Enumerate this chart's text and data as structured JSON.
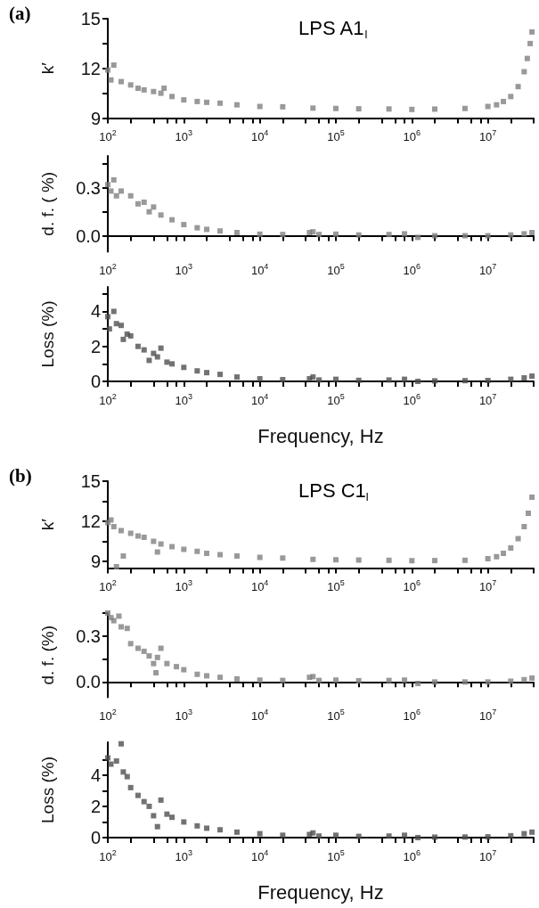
{
  "chart_data": [
    {
      "type": "scatter",
      "title": "LPS A1$_{l}$",
      "annotations": [
        "(a)"
      ],
      "ylabel": "k′",
      "marker": "square",
      "color": "#7f7f7f",
      "x": [
        100,
        110,
        120,
        150,
        200,
        250,
        300,
        400,
        500,
        550,
        700,
        1000,
        1500,
        2000,
        3000,
        5000,
        10000,
        20000,
        50000,
        100000,
        200000,
        500000,
        1000000,
        2000000,
        5000000,
        10000000,
        13000000,
        16000000,
        20000000,
        25000000,
        30000000,
        33000000,
        36000000,
        38000000
      ],
      "values": [
        11.9,
        11.3,
        12.2,
        11.2,
        11,
        10.8,
        10.7,
        10.6,
        10.5,
        10.8,
        10.3,
        10.1,
        10.0,
        9.95,
        9.9,
        9.8,
        9.7,
        9.68,
        9.6,
        9.58,
        9.56,
        9.55,
        9.52,
        9.54,
        9.58,
        9.7,
        9.8,
        10,
        10.3,
        10.9,
        11.8,
        12.6,
        13.5,
        14.2
      ],
      "xlim": [
        100,
        40000000
      ],
      "xticks": [
        {
          "value": 100,
          "label": "10$^{2}$"
        },
        {
          "value": 200,
          "label": null
        },
        {
          "value": 400,
          "label": null
        },
        {
          "value": 600,
          "label": null
        },
        {
          "value": 800,
          "label": null
        },
        {
          "value": 1000,
          "label": "10$^{3}$"
        },
        {
          "value": 2000,
          "label": null
        },
        {
          "value": 4000,
          "label": null
        },
        {
          "value": 6000,
          "label": null
        },
        {
          "value": 8000,
          "label": null
        },
        {
          "value": 10000,
          "label": "10$^{4}$"
        },
        {
          "value": 20000,
          "label": null
        },
        {
          "value": 40000,
          "label": null
        },
        {
          "value": 60000,
          "label": null
        },
        {
          "value": 80000,
          "label": null
        },
        {
          "value": 100000,
          "label": "10$^{5}$"
        },
        {
          "value": 200000,
          "label": null
        },
        {
          "value": 400000,
          "label": null
        },
        {
          "value": 600000,
          "label": null
        },
        {
          "value": 800000,
          "label": null
        },
        {
          "value": 1000000,
          "label": "10$^{6}$"
        },
        {
          "value": 2000000,
          "label": null
        },
        {
          "value": 4000000,
          "label": null
        },
        {
          "value": 6000000,
          "label": null
        },
        {
          "value": 8000000,
          "label": null
        },
        {
          "value": 10000000,
          "label": "10$^{7}$"
        },
        {
          "value": 20000000,
          "label": null
        },
        {
          "value": 40000000,
          "label": null
        }
      ],
      "ylim": [
        9,
        15
      ],
      "yticks": [
        9,
        {
          "value": 10.5,
          "label": null
        },
        12,
        {
          "value": 13.5,
          "label": null
        },
        15
      ],
      "log": "x",
      "grid": false
    },
    {
      "type": "scatter",
      "ylabel": "d. f. ( %)",
      "marker": "square",
      "color": "#7f7f7f",
      "x": [
        100,
        110,
        120,
        130,
        150,
        200,
        250,
        300,
        350,
        400,
        500,
        700,
        1000,
        1500,
        2000,
        3000,
        5000,
        10000,
        20000,
        45000,
        50000,
        60000,
        100000,
        200000,
        500000,
        800000,
        1200000,
        2000000,
        5000000,
        10000000,
        20000000,
        30000000,
        38000000
      ],
      "values": [
        0.32,
        0.28,
        0.35,
        0.25,
        0.28,
        0.25,
        0.2,
        0.21,
        0.15,
        0.18,
        0.13,
        0.1,
        0.07,
        0.05,
        0.04,
        0.03,
        0.02,
        0.01,
        0.008,
        0.02,
        0.025,
        0.008,
        0.01,
        0.005,
        0.008,
        0.012,
        -0.01,
        0.0,
        0.0,
        0.0,
        0.005,
        0.012,
        0.02
      ],
      "xlim": [
        100,
        40000000
      ],
      "xticks": [
        {
          "value": 100,
          "label": "10$^{2}$"
        },
        {
          "value": 200,
          "label": null
        },
        {
          "value": 400,
          "label": null
        },
        {
          "value": 600,
          "label": null
        },
        {
          "value": 800,
          "label": null
        },
        {
          "value": 1000,
          "label": "10$^{3}$"
        },
        {
          "value": 2000,
          "label": null
        },
        {
          "value": 4000,
          "label": null
        },
        {
          "value": 6000,
          "label": null
        },
        {
          "value": 8000,
          "label": null
        },
        {
          "value": 10000,
          "label": "10$^{4}$"
        },
        {
          "value": 20000,
          "label": null
        },
        {
          "value": 40000,
          "label": null
        },
        {
          "value": 60000,
          "label": null
        },
        {
          "value": 80000,
          "label": null
        },
        {
          "value": 100000,
          "label": "10$^{5}$"
        },
        {
          "value": 200000,
          "label": null
        },
        {
          "value": 400000,
          "label": null
        },
        {
          "value": 600000,
          "label": null
        },
        {
          "value": 800000,
          "label": null
        },
        {
          "value": 1000000,
          "label": "10$^{6}$"
        },
        {
          "value": 2000000,
          "label": null
        },
        {
          "value": 4000000,
          "label": null
        },
        {
          "value": 6000000,
          "label": null
        },
        {
          "value": 8000000,
          "label": null
        },
        {
          "value": 10000000,
          "label": "10$^{7}$"
        },
        {
          "value": 20000000,
          "label": null
        },
        {
          "value": 40000000,
          "label": null
        }
      ],
      "ylim": [
        -0.1,
        0.5
      ],
      "yticks": [
        {
          "value": 0,
          "label": "0.0"
        },
        {
          "value": 0.15,
          "label": null
        },
        0.3,
        {
          "value": 0.45,
          "label": null
        }
      ],
      "log": "x",
      "grid": false
    },
    {
      "type": "scatter",
      "ylabel": "Loss (%)",
      "xlabel": "Frequency, Hz",
      "marker": "square",
      "color": "#4f4f4f",
      "x": [
        100,
        105,
        120,
        130,
        150,
        160,
        180,
        200,
        250,
        300,
        350,
        400,
        450,
        500,
        600,
        700,
        1000,
        1500,
        2000,
        3000,
        5000,
        10000,
        20000,
        45000,
        50000,
        60000,
        100000,
        200000,
        500000,
        800000,
        1200000,
        2000000,
        5000000,
        10000000,
        20000000,
        30000000,
        38000000
      ],
      "values": [
        3.7,
        3.0,
        4.0,
        3.3,
        3.2,
        2.4,
        2.7,
        2.6,
        2.0,
        1.8,
        1.2,
        1.6,
        1.4,
        1.9,
        1.1,
        1.0,
        0.8,
        0.6,
        0.5,
        0.4,
        0.25,
        0.15,
        0.1,
        0.15,
        0.25,
        0.08,
        0.12,
        0.06,
        0.08,
        0.12,
        0.0,
        0.03,
        0.04,
        0.05,
        0.12,
        0.2,
        0.3
      ],
      "xlim": [
        100,
        40000000
      ],
      "xticks": [
        {
          "value": 100,
          "label": "10$^{2}$"
        },
        {
          "value": 200,
          "label": null
        },
        {
          "value": 400,
          "label": null
        },
        {
          "value": 600,
          "label": null
        },
        {
          "value": 800,
          "label": null
        },
        {
          "value": 1000,
          "label": "10$^{3}$"
        },
        {
          "value": 2000,
          "label": null
        },
        {
          "value": 4000,
          "label": null
        },
        {
          "value": 6000,
          "label": null
        },
        {
          "value": 8000,
          "label": null
        },
        {
          "value": 10000,
          "label": "10$^{4}$"
        },
        {
          "value": 20000,
          "label": null
        },
        {
          "value": 40000,
          "label": null
        },
        {
          "value": 60000,
          "label": null
        },
        {
          "value": 80000,
          "label": null
        },
        {
          "value": 100000,
          "label": "10$^{5}$"
        },
        {
          "value": 200000,
          "label": null
        },
        {
          "value": 400000,
          "label": null
        },
        {
          "value": 600000,
          "label": null
        },
        {
          "value": 800000,
          "label": null
        },
        {
          "value": 1000000,
          "label": "10$^{6}$"
        },
        {
          "value": 2000000,
          "label": null
        },
        {
          "value": 4000000,
          "label": null
        },
        {
          "value": 6000000,
          "label": null
        },
        {
          "value": 8000000,
          "label": null
        },
        {
          "value": 10000000,
          "label": "10$^{7}$"
        },
        {
          "value": 20000000,
          "label": null
        },
        {
          "value": 40000000,
          "label": null
        }
      ],
      "ylim": [
        0,
        5.4
      ],
      "yticks": [
        0,
        {
          "value": 1,
          "label": null
        },
        2,
        {
          "value": 3,
          "label": null
        },
        4,
        {
          "value": 5,
          "label": null
        }
      ],
      "log": "x",
      "grid": false
    },
    {
      "type": "scatter",
      "title": "LPS C1$_{l}$",
      "annotations": [
        "(b)"
      ],
      "ylabel": "k′",
      "marker": "square",
      "color": "#7f7f7f",
      "x": [
        100,
        110,
        120,
        130,
        150,
        160,
        200,
        250,
        300,
        400,
        450,
        500,
        700,
        1000,
        1500,
        2000,
        3000,
        5000,
        10000,
        20000,
        50000,
        100000,
        200000,
        500000,
        1000000,
        2000000,
        5000000,
        10000000,
        13000000,
        16000000,
        20000000,
        25000000,
        30000000,
        34000000,
        38000000
      ],
      "values": [
        11.9,
        12.1,
        11.6,
        8.6,
        11.3,
        9.4,
        11.1,
        10.9,
        10.8,
        10.5,
        9.7,
        10.3,
        10.1,
        9.9,
        9.75,
        9.6,
        9.5,
        9.4,
        9.3,
        9.25,
        9.15,
        9.12,
        9.1,
        9.08,
        9.05,
        9.06,
        9.08,
        9.2,
        9.35,
        9.6,
        10.0,
        10.7,
        11.6,
        12.6,
        13.8
      ],
      "xlim": [
        100,
        40000000
      ],
      "xticks": [
        {
          "value": 100,
          "label": "10$^{2}$"
        },
        {
          "value": 200,
          "label": null
        },
        {
          "value": 400,
          "label": null
        },
        {
          "value": 600,
          "label": null
        },
        {
          "value": 800,
          "label": null
        },
        {
          "value": 1000,
          "label": "10$^{3}$"
        },
        {
          "value": 2000,
          "label": null
        },
        {
          "value": 4000,
          "label": null
        },
        {
          "value": 6000,
          "label": null
        },
        {
          "value": 8000,
          "label": null
        },
        {
          "value": 10000,
          "label": "10$^{4}$"
        },
        {
          "value": 20000,
          "label": null
        },
        {
          "value": 40000,
          "label": null
        },
        {
          "value": 60000,
          "label": null
        },
        {
          "value": 80000,
          "label": null
        },
        {
          "value": 100000,
          "label": "10$^{5}$"
        },
        {
          "value": 200000,
          "label": null
        },
        {
          "value": 400000,
          "label": null
        },
        {
          "value": 600000,
          "label": null
        },
        {
          "value": 800000,
          "label": null
        },
        {
          "value": 1000000,
          "label": "10$^{6}$"
        },
        {
          "value": 2000000,
          "label": null
        },
        {
          "value": 4000000,
          "label": null
        },
        {
          "value": 6000000,
          "label": null
        },
        {
          "value": 8000000,
          "label": null
        },
        {
          "value": 10000000,
          "label": "10$^{7}$"
        },
        {
          "value": 20000000,
          "label": null
        },
        {
          "value": 40000000,
          "label": null
        }
      ],
      "ylim": [
        8.5,
        15
      ],
      "yticks": [
        9,
        {
          "value": 10.5,
          "label": null
        },
        12,
        {
          "value": 13.5,
          "label": null
        },
        15
      ],
      "log": "x",
      "grid": false
    },
    {
      "type": "scatter",
      "ylabel": "d. f. (%)",
      "marker": "square",
      "color": "#7f7f7f",
      "x": [
        100,
        110,
        120,
        140,
        150,
        180,
        200,
        250,
        300,
        350,
        400,
        430,
        450,
        500,
        600,
        800,
        1000,
        1500,
        2000,
        3000,
        5000,
        10000,
        20000,
        45000,
        50000,
        60000,
        100000,
        200000,
        500000,
        800000,
        1200000,
        2000000,
        5000000,
        10000000,
        20000000,
        30000000,
        38000000
      ],
      "values": [
        0.45,
        0.42,
        0.4,
        0.43,
        0.36,
        0.35,
        0.25,
        0.22,
        0.2,
        0.17,
        0.12,
        0.06,
        0.16,
        0.22,
        0.12,
        0.1,
        0.08,
        0.05,
        0.04,
        0.03,
        0.02,
        0.012,
        0.01,
        0.03,
        0.035,
        0.01,
        0.012,
        0.008,
        0.01,
        0.012,
        -0.01,
        0.0,
        0.0,
        0.0,
        0.005,
        0.015,
        0.025
      ],
      "xlim": [
        100,
        40000000
      ],
      "xticks": [
        {
          "value": 100,
          "label": "10$^{2}$"
        },
        {
          "value": 200,
          "label": null
        },
        {
          "value": 400,
          "label": null
        },
        {
          "value": 600,
          "label": null
        },
        {
          "value": 800,
          "label": null
        },
        {
          "value": 1000,
          "label": "10$^{3}$"
        },
        {
          "value": 2000,
          "label": null
        },
        {
          "value": 4000,
          "label": null
        },
        {
          "value": 6000,
          "label": null
        },
        {
          "value": 8000,
          "label": null
        },
        {
          "value": 10000,
          "label": "10$^{4}$"
        },
        {
          "value": 20000,
          "label": null
        },
        {
          "value": 40000,
          "label": null
        },
        {
          "value": 60000,
          "label": null
        },
        {
          "value": 80000,
          "label": null
        },
        {
          "value": 100000,
          "label": "10$^{5}$"
        },
        {
          "value": 200000,
          "label": null
        },
        {
          "value": 400000,
          "label": null
        },
        {
          "value": 600000,
          "label": null
        },
        {
          "value": 800000,
          "label": null
        },
        {
          "value": 1000000,
          "label": "10$^{6}$"
        },
        {
          "value": 2000000,
          "label": null
        },
        {
          "value": 4000000,
          "label": null
        },
        {
          "value": 6000000,
          "label": null
        },
        {
          "value": 8000000,
          "label": null
        },
        {
          "value": 10000000,
          "label": "10$^{7}$"
        },
        {
          "value": 20000000,
          "label": null
        },
        {
          "value": 40000000,
          "label": null
        }
      ],
      "ylim": [
        -0.1,
        0.45
      ],
      "yticks": [
        {
          "value": 0,
          "label": "0.0"
        },
        {
          "value": 0.15,
          "label": null
        },
        0.3,
        {
          "value": 0.45,
          "label": null
        }
      ],
      "log": "x",
      "grid": false
    },
    {
      "type": "scatter",
      "ylabel": "Loss (%)",
      "xlabel": "Frequency, Hz",
      "marker": "square",
      "color": "#4f4f4f",
      "x": [
        100,
        110,
        130,
        150,
        160,
        180,
        200,
        250,
        300,
        350,
        400,
        450,
        500,
        600,
        700,
        1000,
        1500,
        2000,
        3000,
        5000,
        10000,
        20000,
        45000,
        50000,
        60000,
        100000,
        200000,
        500000,
        800000,
        1200000,
        2000000,
        5000000,
        10000000,
        20000000,
        30000000,
        38000000
      ],
      "values": [
        5.1,
        4.7,
        4.9,
        6.0,
        4.2,
        3.9,
        3.2,
        2.7,
        2.3,
        2.0,
        1.4,
        0.7,
        2.4,
        1.5,
        1.3,
        1.0,
        0.75,
        0.6,
        0.5,
        0.35,
        0.25,
        0.15,
        0.2,
        0.3,
        0.1,
        0.15,
        0.08,
        0.1,
        0.15,
        0.0,
        0.03,
        0.04,
        0.05,
        0.12,
        0.25,
        0.35
      ],
      "xlim": [
        100,
        40000000
      ],
      "xticks": [
        {
          "value": 100,
          "label": "10$^{2}$"
        },
        {
          "value": 200,
          "label": null
        },
        {
          "value": 400,
          "label": null
        },
        {
          "value": 600,
          "label": null
        },
        {
          "value": 800,
          "label": null
        },
        {
          "value": 1000,
          "label": "10$^{3}$"
        },
        {
          "value": 2000,
          "label": null
        },
        {
          "value": 4000,
          "label": null
        },
        {
          "value": 6000,
          "label": null
        },
        {
          "value": 8000,
          "label": null
        },
        {
          "value": 10000,
          "label": "10$^{4}$"
        },
        {
          "value": 20000,
          "label": null
        },
        {
          "value": 40000,
          "label": null
        },
        {
          "value": 60000,
          "label": null
        },
        {
          "value": 80000,
          "label": null
        },
        {
          "value": 100000,
          "label": "10$^{5}$"
        },
        {
          "value": 200000,
          "label": null
        },
        {
          "value": 400000,
          "label": null
        },
        {
          "value": 600000,
          "label": null
        },
        {
          "value": 800000,
          "label": null
        },
        {
          "value": 1000000,
          "label": "10$^{6}$"
        },
        {
          "value": 2000000,
          "label": null
        },
        {
          "value": 4000000,
          "label": null
        },
        {
          "value": 6000000,
          "label": null
        },
        {
          "value": 8000000,
          "label": null
        },
        {
          "value": 10000000,
          "label": "10$^{7}$"
        },
        {
          "value": 20000000,
          "label": null
        },
        {
          "value": 40000000,
          "label": null
        }
      ],
      "ylim": [
        0,
        6.1
      ],
      "yticks": [
        0,
        {
          "value": 1,
          "label": null
        },
        2,
        {
          "value": 3,
          "label": null
        },
        4,
        {
          "value": 5,
          "label": null
        }
      ],
      "log": "x",
      "grid": false
    }
  ]
}
